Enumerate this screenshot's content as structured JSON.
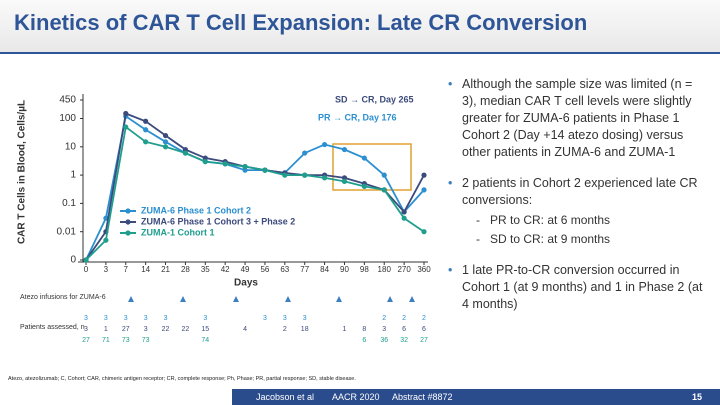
{
  "slide": {
    "title": "Kinetics of CAR T Cell Expansion: Late CR Conversion",
    "bullets": [
      {
        "text": "Although the sample size was limited (n = 3), median CAR T cell levels were slightly greater for ZUMA-6 patients in Phase 1 Cohort 2 (Day +14 atezo dosing) versus other patients in ZUMA-6 and ZUMA-1"
      },
      {
        "text": "2 patients in Cohort 2 experienced late CR conversions:",
        "sub": [
          "PR to CR: at 6 months",
          "SD to CR: at 9 months"
        ]
      },
      {
        "text": "1 late PR-to-CR conversion occurred in Cohort 1 (at 9 months) and 1 in Phase 2 (at 4 months)"
      }
    ],
    "abbreviations": "Atezo, atezolizumab; C, Cohort; CAR, chimeric antigen receptor; CR, complete response; Ph, Phase; PR, partial response; SD, stable disease.",
    "footer": [
      "Jacobson et al",
      "AACR 2020",
      "Abstract #8872",
      "15"
    ]
  },
  "chart_data": {
    "type": "line",
    "y_label": "CAR T Cells in Blood, Cells/µL",
    "x_label": "Days",
    "log_scale": true,
    "categories": [
      "0",
      "3",
      "7",
      "14",
      "21",
      "28",
      "35",
      "42",
      "49",
      "56",
      "63",
      "77",
      "84",
      "90",
      "98",
      "180",
      "270",
      "360"
    ],
    "ylim": [
      0,
      450
    ],
    "yticks": [
      0,
      0.01,
      0.1,
      1,
      10,
      100,
      450
    ],
    "annotations": [
      "SD → CR, Day 265",
      "PR → CR, Day 176"
    ],
    "series": [
      {
        "name": "ZUMA-6 Phase 1 Cohort 2",
        "color": "#2b8fd0",
        "values": [
          0,
          0.03,
          120,
          40,
          15,
          6,
          3,
          2.5,
          1.5,
          1.5,
          1.2,
          6,
          12,
          8,
          4,
          1,
          0.05,
          0.3
        ]
      },
      {
        "name": "ZUMA-6 Phase 1 Cohort 3 + Phase 2",
        "color": "#3c4a7c",
        "values": [
          0,
          0.01,
          150,
          80,
          25,
          8,
          4,
          3,
          2,
          1.5,
          1.2,
          1,
          1,
          0.8,
          0.5,
          0.3,
          0.05,
          1
        ]
      },
      {
        "name": "ZUMA-1 Cohort 1",
        "color": "#1f9e8e",
        "values": [
          0,
          0.005,
          50,
          15,
          10,
          6,
          3,
          2.5,
          2,
          1.5,
          1,
          1,
          0.8,
          0.6,
          0.4,
          0.3,
          0.03,
          0.01
        ]
      }
    ],
    "atezo_label": "Atezo infusions for ZUMA-6",
    "patients_label": "Patients assessed, n",
    "patients": [
      [
        "3",
        "3",
        "3",
        "3",
        "3",
        null,
        "3",
        null,
        null,
        "3",
        "3",
        "3",
        null,
        null,
        null,
        "2",
        "2",
        "2"
      ],
      [
        "3",
        "1",
        "27",
        "3",
        "22",
        "22",
        "15",
        null,
        "4",
        null,
        "2",
        "18",
        null,
        "1",
        "8",
        "3",
        "6",
        "6"
      ],
      [
        "27",
        "71",
        "73",
        "73",
        null,
        null,
        "74",
        null,
        null,
        null,
        null,
        null,
        null,
        null,
        "6",
        "36",
        "32",
        "27"
      ]
    ]
  }
}
